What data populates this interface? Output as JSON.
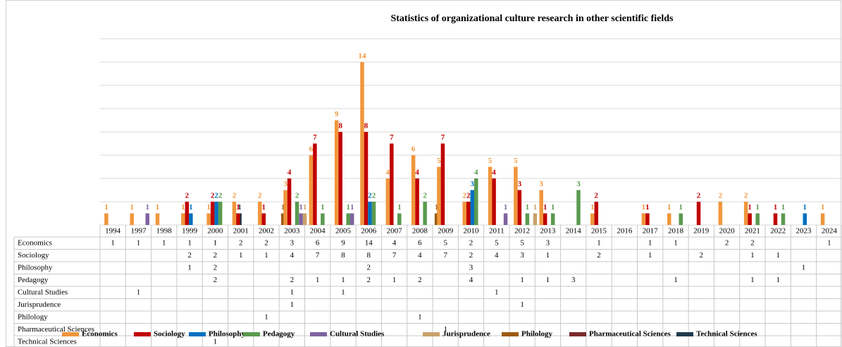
{
  "chart_data": {
    "type": "bar",
    "title": "Statistics of organizational  culture research in other scientific fields",
    "categories": [
      "1994",
      "1997",
      "1998",
      "1999",
      "2000",
      "2001",
      "2002",
      "2003",
      "2004",
      "2005",
      "2006",
      "2007",
      "2008",
      "2009",
      "2010",
      "2011",
      "2012",
      "2013",
      "2014",
      "2015",
      "2016",
      "2017",
      "2018",
      "2019",
      "2020",
      "2021",
      "2022",
      "2023",
      "2024"
    ],
    "ylim": [
      0,
      16
    ],
    "yticks": [
      0,
      2,
      4,
      6,
      8,
      10,
      12,
      14,
      16
    ],
    "grid": true,
    "legend": "bottom",
    "series": [
      {
        "name": "Economics",
        "color": "#f0963c",
        "values": [
          1,
          1,
          1,
          1,
          1,
          2,
          2,
          3,
          6,
          9,
          14,
          4,
          6,
          5,
          2,
          5,
          5,
          3,
          null,
          1,
          null,
          1,
          1,
          null,
          2,
          2,
          null,
          null,
          1
        ]
      },
      {
        "name": "Sociology",
        "color": "#c00000",
        "values": [
          null,
          null,
          null,
          2,
          2,
          1,
          1,
          4,
          7,
          8,
          8,
          7,
          4,
          7,
          2,
          4,
          3,
          1,
          null,
          2,
          null,
          1,
          null,
          2,
          null,
          1,
          1,
          null,
          null
        ]
      },
      {
        "name": "Philosophy",
        "color": "#0070c0",
        "values": [
          null,
          null,
          null,
          1,
          2,
          null,
          null,
          null,
          null,
          null,
          2,
          null,
          null,
          null,
          3,
          null,
          null,
          null,
          null,
          null,
          null,
          null,
          null,
          null,
          null,
          null,
          null,
          1,
          null
        ]
      },
      {
        "name": "Pedagogy",
        "color": "#5a9a4e",
        "values": [
          null,
          null,
          null,
          null,
          2,
          null,
          null,
          2,
          1,
          1,
          2,
          1,
          2,
          null,
          4,
          null,
          1,
          1,
          3,
          null,
          null,
          null,
          1,
          null,
          null,
          1,
          1,
          null,
          null
        ]
      },
      {
        "name": "Cultural Studies",
        "color": "#7f63a1",
        "values": [
          null,
          1,
          null,
          null,
          null,
          null,
          null,
          1,
          null,
          1,
          null,
          null,
          null,
          null,
          null,
          1,
          null,
          null,
          null,
          null,
          null,
          null,
          null,
          null,
          null,
          null,
          null,
          null,
          null
        ]
      },
      {
        "name": "Jurisprudence",
        "color": "#c8a26a",
        "values": [
          null,
          null,
          null,
          null,
          null,
          null,
          null,
          1,
          null,
          null,
          null,
          null,
          null,
          null,
          null,
          null,
          1,
          null,
          null,
          null,
          null,
          null,
          null,
          null,
          null,
          null,
          null,
          null,
          null
        ]
      },
      {
        "name": "Philology",
        "color": "#9c5a10",
        "values": [
          null,
          null,
          null,
          null,
          null,
          null,
          1,
          null,
          null,
          null,
          null,
          null,
          1,
          null,
          null,
          null,
          null,
          null,
          null,
          null,
          null,
          null,
          null,
          null,
          null,
          null,
          null,
          null,
          null
        ]
      },
      {
        "name": "Pharmaceutical Sciences",
        "color": "#7b2a2a",
        "values": [
          null,
          null,
          null,
          null,
          null,
          null,
          null,
          null,
          null,
          null,
          null,
          null,
          null,
          1,
          null,
          null,
          null,
          null,
          null,
          null,
          null,
          null,
          null,
          null,
          null,
          null,
          null,
          null,
          null
        ]
      },
      {
        "name": "Technical Sciences",
        "color": "#1f3a4d",
        "values": [
          null,
          null,
          null,
          null,
          1,
          null,
          null,
          null,
          null,
          null,
          null,
          null,
          null,
          null,
          null,
          null,
          null,
          null,
          null,
          null,
          null,
          null,
          null,
          null,
          null,
          null,
          null,
          null,
          null
        ]
      }
    ]
  }
}
